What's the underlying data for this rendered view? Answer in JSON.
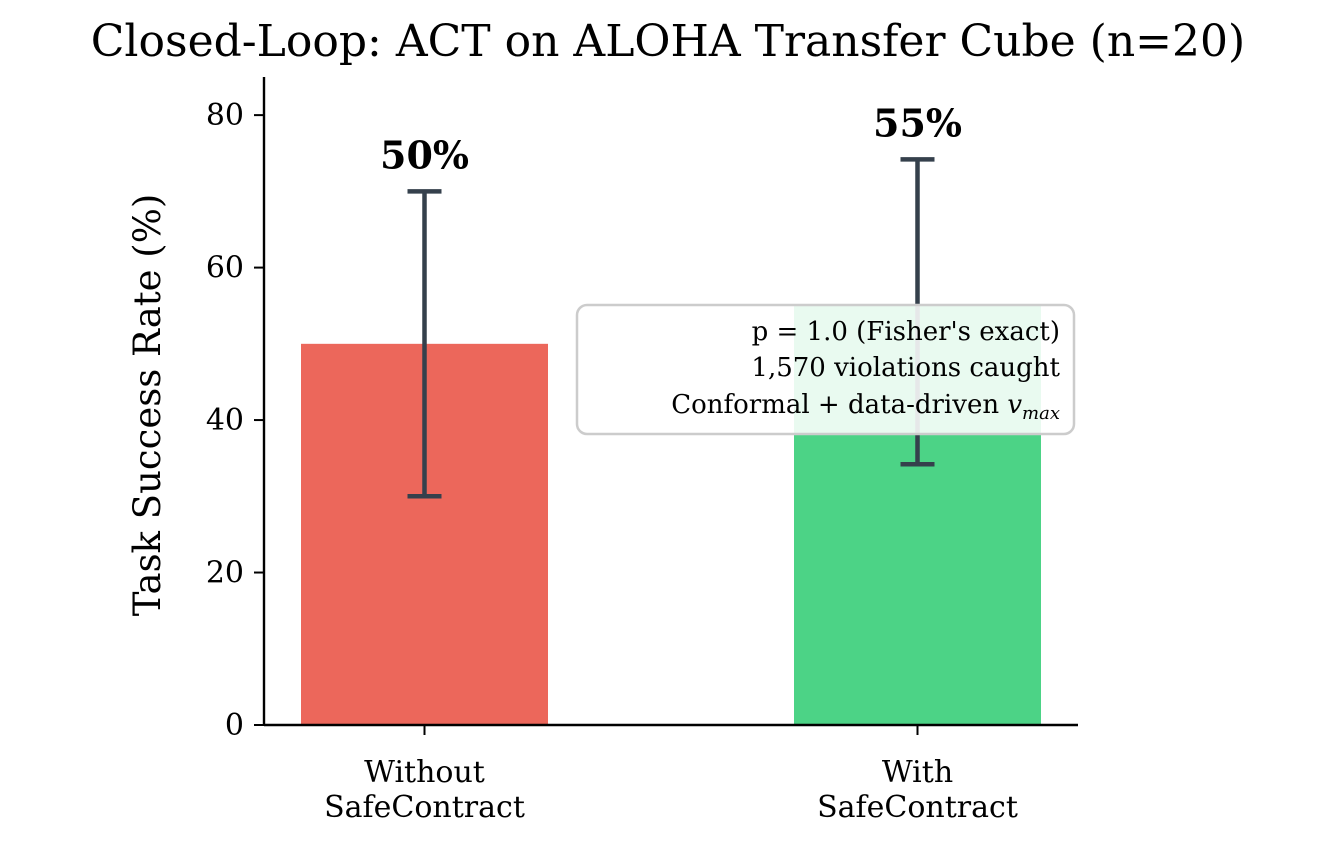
{
  "chart_data": {
    "type": "bar",
    "title": "Closed-Loop: ACT on ALOHA Transfer Cube (n=20)",
    "xlabel": "",
    "ylabel": "Task Success Rate (%)",
    "ylim": [
      0,
      85
    ],
    "yticks": [
      0,
      20,
      40,
      60,
      80
    ],
    "grid": false,
    "categories": [
      [
        "Without",
        "SafeContract"
      ],
      [
        "With",
        "SafeContract"
      ]
    ],
    "values": [
      50,
      55
    ],
    "error_low": [
      30,
      34.2
    ],
    "error_high": [
      70,
      74.2
    ],
    "data_labels": [
      "50%",
      "55%"
    ],
    "colors": [
      "#ec675b",
      "#4cd386"
    ],
    "error_color": "#35404c",
    "annotation": {
      "lines": [
        "p = 1.0 (Fisher's exact)",
        "1,570 violations caught",
        "Conformal + data-driven "
      ],
      "math_var": "v",
      "math_sub": "max",
      "position": "center-right"
    }
  }
}
